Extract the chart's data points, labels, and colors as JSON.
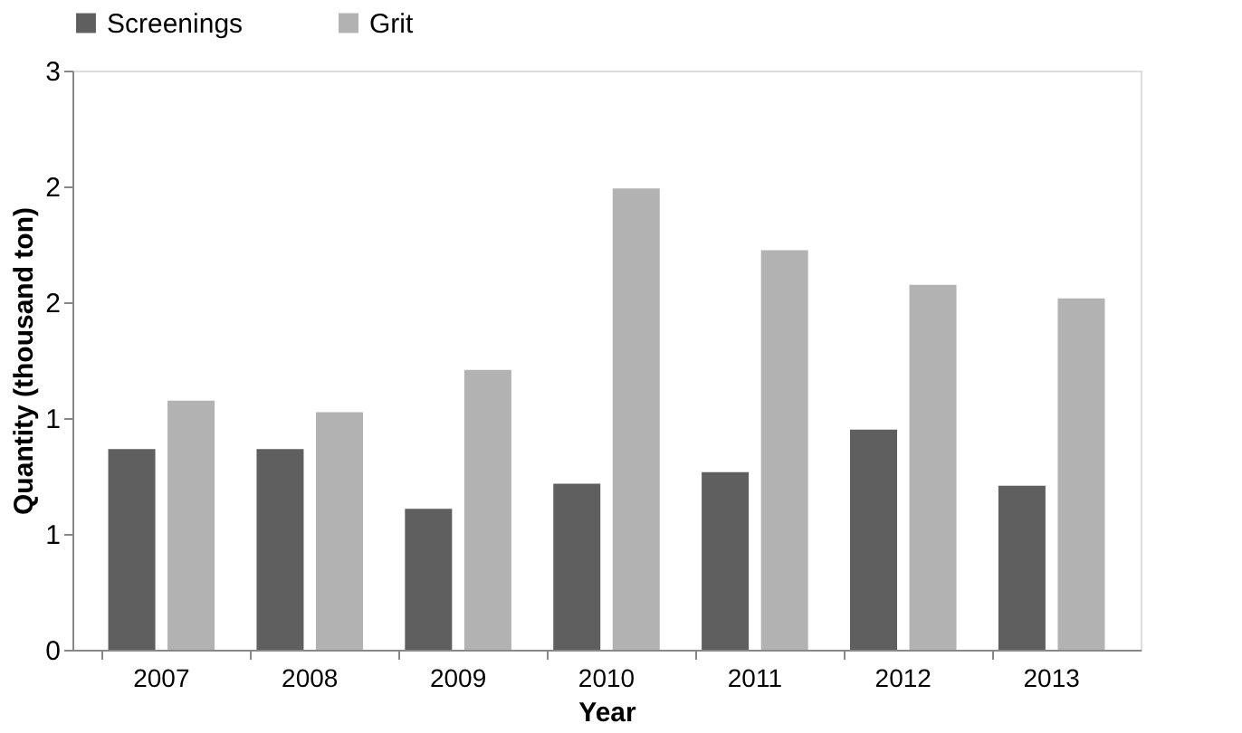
{
  "chart_data": {
    "type": "bar",
    "xlabel": "Year",
    "ylabel": "Quantity (thousand ton)",
    "categories": [
      "2007",
      "2008",
      "2009",
      "2010",
      "2011",
      "2012",
      "2013"
    ],
    "series": [
      {
        "name": "Screenings",
        "color": "#5f5f5f",
        "values": [
          1.04,
          1.04,
          0.73,
          0.86,
          0.92,
          1.14,
          0.85
        ]
      },
      {
        "name": "Grit",
        "color": "#b2b2b2",
        "values": [
          1.29,
          1.23,
          1.45,
          2.39,
          2.07,
          1.89,
          1.82
        ]
      }
    ],
    "ylim": [
      0,
      3
    ],
    "yticks": [
      0,
      {
        "value": 0.6,
        "label": "1"
      },
      {
        "value": 1.2,
        "label": "1"
      },
      {
        "value": 1.8,
        "label": "2"
      },
      {
        "value": 2.4,
        "label": "2"
      },
      3
    ],
    "grid": false,
    "legend": "top"
  }
}
